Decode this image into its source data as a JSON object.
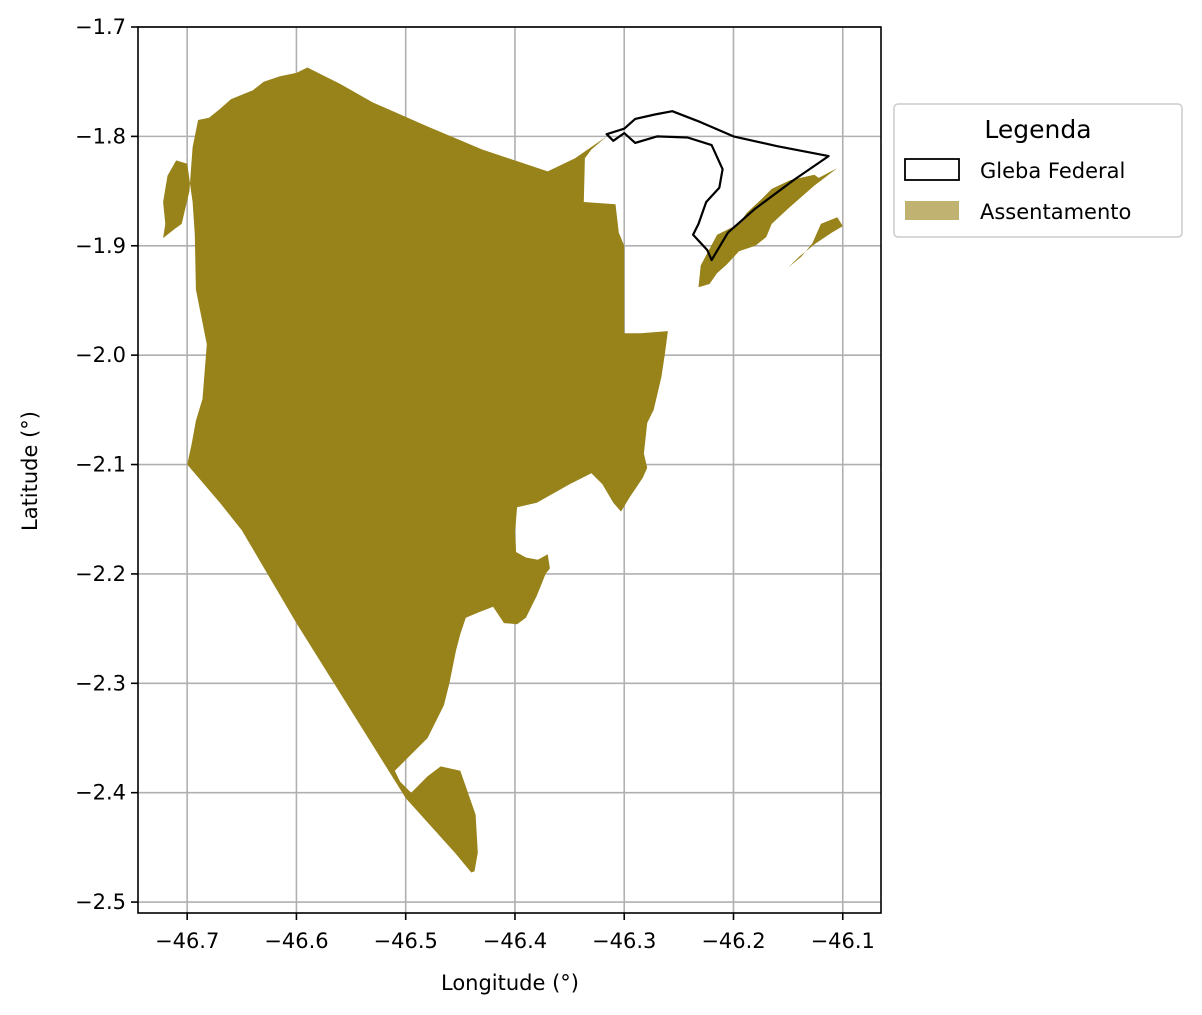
{
  "chart_data": {
    "type": "map",
    "xlabel": "Longitude (°)",
    "ylabel": "Latitude (°)",
    "xlim": [
      -46.745,
      -46.065
    ],
    "ylim": [
      -2.51,
      -1.7
    ],
    "grid": true,
    "xticks": [
      -46.7,
      -46.6,
      -46.5,
      -46.4,
      -46.3,
      -46.2,
      -46.1
    ],
    "xtick_labels": [
      "−46.7",
      "−46.6",
      "−46.5",
      "−46.4",
      "−46.3",
      "−46.2",
      "−46.1"
    ],
    "yticks": [
      -1.7,
      -1.8,
      -1.9,
      -2.0,
      -2.1,
      -2.2,
      -2.3,
      -2.4,
      -2.5
    ],
    "ytick_labels": [
      "−1.7",
      "−1.8",
      "−1.9",
      "−2.0",
      "−2.1",
      "−2.2",
      "−2.3",
      "−2.4",
      "−2.5"
    ],
    "legend": {
      "title": "Legenda",
      "placement": "outside-right-top",
      "entries": [
        {
          "label": "Gleba Federal",
          "style": "outline",
          "color": "#000000"
        },
        {
          "label": "Assentamento",
          "style": "fill",
          "color": "#c0b271"
        }
      ]
    },
    "layers": [
      {
        "name": "Assentamento",
        "color": "#98821a",
        "polygons": [
          [
            [
              -46.59,
              -1.737
            ],
            [
              -46.56,
              -1.752
            ],
            [
              -46.53,
              -1.769
            ],
            [
              -46.48,
              -1.791
            ],
            [
              -46.43,
              -1.812
            ],
            [
              -46.37,
              -1.832
            ],
            [
              -46.345,
              -1.82
            ],
            [
              -46.316,
              -1.8
            ],
            [
              -46.33,
              -1.812
            ],
            [
              -46.336,
              -1.82
            ],
            [
              -46.337,
              -1.86
            ],
            [
              -46.308,
              -1.862
            ],
            [
              -46.305,
              -1.888
            ],
            [
              -46.3,
              -1.9
            ],
            [
              -46.3,
              -1.98
            ],
            [
              -46.285,
              -1.98
            ],
            [
              -46.26,
              -1.978
            ],
            [
              -46.263,
              -2.0
            ],
            [
              -46.266,
              -2.02
            ],
            [
              -46.273,
              -2.05
            ],
            [
              -46.279,
              -2.062
            ],
            [
              -46.282,
              -2.09
            ],
            [
              -46.279,
              -2.103
            ],
            [
              -46.283,
              -2.112
            ],
            [
              -46.295,
              -2.13
            ],
            [
              -46.303,
              -2.143
            ],
            [
              -46.31,
              -2.135
            ],
            [
              -46.32,
              -2.118
            ],
            [
              -46.33,
              -2.108
            ],
            [
              -46.35,
              -2.118
            ],
            [
              -46.38,
              -2.135
            ],
            [
              -46.398,
              -2.139
            ],
            [
              -46.4,
              -2.162
            ],
            [
              -46.399,
              -2.18
            ],
            [
              -46.39,
              -2.185
            ],
            [
              -46.379,
              -2.187
            ],
            [
              -46.37,
              -2.182
            ],
            [
              -46.368,
              -2.195
            ],
            [
              -46.372,
              -2.2
            ],
            [
              -46.38,
              -2.22
            ],
            [
              -46.39,
              -2.24
            ],
            [
              -46.398,
              -2.246
            ],
            [
              -46.41,
              -2.245
            ],
            [
              -46.42,
              -2.23
            ],
            [
              -46.433,
              -2.235
            ],
            [
              -46.445,
              -2.24
            ],
            [
              -46.45,
              -2.255
            ],
            [
              -46.454,
              -2.27
            ],
            [
              -46.46,
              -2.3
            ],
            [
              -46.465,
              -2.32
            ],
            [
              -46.48,
              -2.35
            ],
            [
              -46.5,
              -2.37
            ],
            [
              -46.51,
              -2.38
            ],
            [
              -46.505,
              -2.39
            ],
            [
              -46.495,
              -2.4
            ],
            [
              -46.48,
              -2.385
            ],
            [
              -46.468,
              -2.376
            ],
            [
              -46.45,
              -2.38
            ],
            [
              -46.436,
              -2.42
            ],
            [
              -46.434,
              -2.455
            ],
            [
              -46.437,
              -2.472
            ],
            [
              -46.44,
              -2.473
            ],
            [
              -46.455,
              -2.455
            ],
            [
              -46.5,
              -2.405
            ],
            [
              -46.6,
              -2.245
            ],
            [
              -46.65,
              -2.16
            ],
            [
              -46.67,
              -2.135
            ],
            [
              -46.7,
              -2.1
            ],
            [
              -46.696,
              -2.082
            ],
            [
              -46.692,
              -2.06
            ],
            [
              -46.686,
              -2.04
            ],
            [
              -46.682,
              -1.99
            ],
            [
              -46.692,
              -1.94
            ],
            [
              -46.693,
              -1.89
            ],
            [
              -46.695,
              -1.86
            ],
            [
              -46.7,
              -1.825
            ],
            [
              -46.71,
              -1.822
            ],
            [
              -46.718,
              -1.836
            ],
            [
              -46.722,
              -1.86
            ],
            [
              -46.72,
              -1.88
            ],
            [
              -46.722,
              -1.893
            ],
            [
              -46.712,
              -1.885
            ],
            [
              -46.705,
              -1.88
            ],
            [
              -46.698,
              -1.85
            ],
            [
              -46.695,
              -1.81
            ],
            [
              -46.69,
              -1.785
            ],
            [
              -46.68,
              -1.783
            ],
            [
              -46.67,
              -1.775
            ],
            [
              -46.66,
              -1.766
            ],
            [
              -46.65,
              -1.762
            ],
            [
              -46.64,
              -1.758
            ],
            [
              -46.63,
              -1.75
            ],
            [
              -46.615,
              -1.745
            ],
            [
              -46.6,
              -1.742
            ]
          ],
          [
            [
              -46.215,
              -1.89
            ],
            [
              -46.195,
              -1.88
            ],
            [
              -46.188,
              -1.87
            ],
            [
              -46.175,
              -1.858
            ],
            [
              -46.165,
              -1.848
            ],
            [
              -46.148,
              -1.84
            ],
            [
              -46.126,
              -1.835
            ],
            [
              -46.122,
              -1.838
            ],
            [
              -46.105,
              -1.829
            ],
            [
              -46.126,
              -1.845
            ],
            [
              -46.15,
              -1.866
            ],
            [
              -46.165,
              -1.88
            ],
            [
              -46.17,
              -1.892
            ],
            [
              -46.18,
              -1.9
            ],
            [
              -46.195,
              -1.905
            ],
            [
              -46.206,
              -1.917
            ],
            [
              -46.215,
              -1.925
            ],
            [
              -46.222,
              -1.935
            ],
            [
              -46.232,
              -1.938
            ],
            [
              -46.23,
              -1.918
            ],
            [
              -46.222,
              -1.903
            ]
          ],
          [
            [
              -46.12,
              -1.88
            ],
            [
              -46.105,
              -1.874
            ],
            [
              -46.1,
              -1.882
            ],
            [
              -46.11,
              -1.888
            ],
            [
              -46.125,
              -1.898
            ],
            [
              -46.14,
              -1.91
            ],
            [
              -46.15,
              -1.92
            ],
            [
              -46.138,
              -1.91
            ],
            [
              -46.128,
              -1.898
            ]
          ]
        ]
      },
      {
        "name": "Gleba Federal",
        "color": "#000000",
        "polygons": [
          [
            [
              -46.316,
              -1.798
            ],
            [
              -46.3,
              -1.793
            ],
            [
              -46.29,
              -1.784
            ],
            [
              -46.272,
              -1.78
            ],
            [
              -46.256,
              -1.777
            ],
            [
              -46.23,
              -1.787
            ],
            [
              -46.2,
              -1.8
            ],
            [
              -46.16,
              -1.809
            ],
            [
              -46.113,
              -1.818
            ],
            [
              -46.145,
              -1.84
            ],
            [
              -46.18,
              -1.866
            ],
            [
              -46.205,
              -1.888
            ],
            [
              -46.22,
              -1.913
            ],
            [
              -46.224,
              -1.904
            ],
            [
              -46.237,
              -1.89
            ],
            [
              -46.232,
              -1.88
            ],
            [
              -46.225,
              -1.86
            ],
            [
              -46.213,
              -1.847
            ],
            [
              -46.21,
              -1.83
            ],
            [
              -46.22,
              -1.808
            ],
            [
              -46.242,
              -1.801
            ],
            [
              -46.27,
              -1.8
            ],
            [
              -46.29,
              -1.806
            ],
            [
              -46.3,
              -1.797
            ],
            [
              -46.31,
              -1.804
            ]
          ]
        ]
      }
    ]
  }
}
